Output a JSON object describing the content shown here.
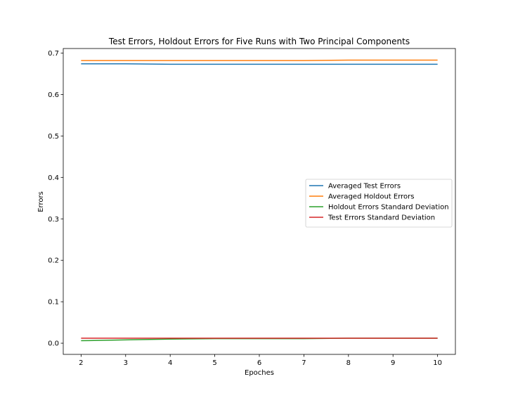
{
  "chart_data": {
    "type": "line",
    "title": "Test Errors, Holdout Errors for Five Runs with Two Principal Components",
    "xlabel": "Epoches",
    "ylabel": "Errors",
    "xlim": [
      1.6,
      10.4
    ],
    "ylim": [
      -0.027,
      0.711
    ],
    "xticks": [
      2,
      3,
      4,
      5,
      6,
      7,
      8,
      9,
      10
    ],
    "xtick_labels": [
      "2",
      "3",
      "4",
      "5",
      "6",
      "7",
      "8",
      "9",
      "10"
    ],
    "yticks": [
      0.0,
      0.1,
      0.2,
      0.3,
      0.4,
      0.5,
      0.6,
      0.7
    ],
    "ytick_labels": [
      "0.0",
      "0.1",
      "0.2",
      "0.3",
      "0.4",
      "0.5",
      "0.6",
      "0.7"
    ],
    "grid": false,
    "legend_position": "center-right",
    "x": [
      2,
      3,
      4,
      5,
      6,
      7,
      8,
      9,
      10
    ],
    "series": [
      {
        "name": "Averaged Test Errors",
        "color": "#1f77b4",
        "values": [
          0.674,
          0.674,
          0.673,
          0.673,
          0.673,
          0.673,
          0.673,
          0.673,
          0.673
        ]
      },
      {
        "name": "Averaged Holdout Errors",
        "color": "#ff7f0e",
        "values": [
          0.682,
          0.682,
          0.682,
          0.682,
          0.682,
          0.682,
          0.683,
          0.683,
          0.683
        ]
      },
      {
        "name": "Holdout Errors Standard Deviation",
        "color": "#2ca02c",
        "values": [
          0.006,
          0.008,
          0.01,
          0.011,
          0.011,
          0.011,
          0.012,
          0.012,
          0.012
        ]
      },
      {
        "name": "Test Errors Standard Deviation",
        "color": "#d62728",
        "values": [
          0.012,
          0.012,
          0.012,
          0.012,
          0.012,
          0.012,
          0.012,
          0.012,
          0.012
        ]
      }
    ]
  }
}
